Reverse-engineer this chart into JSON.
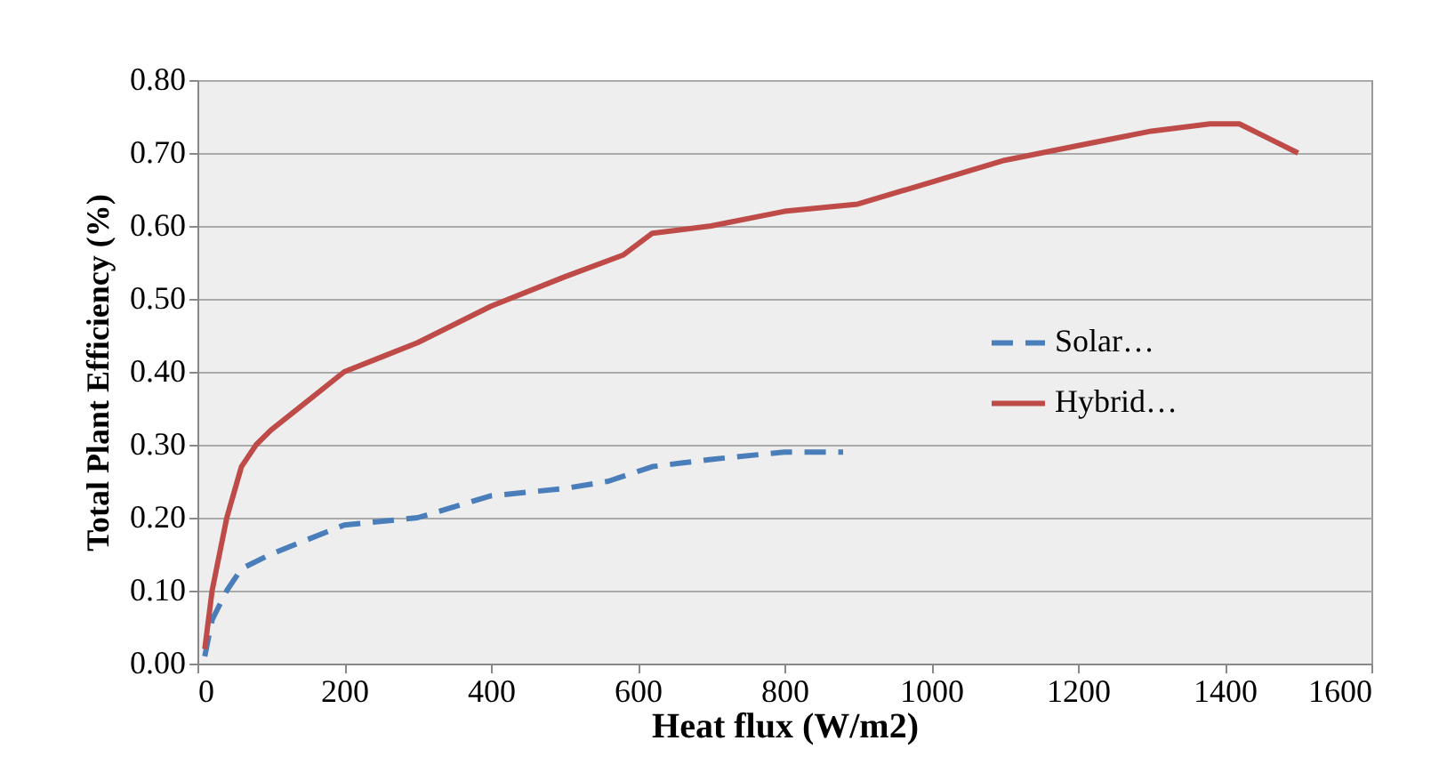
{
  "chart_data": {
    "type": "line",
    "xlabel": "Heat flux (W/m2)",
    "ylabel": "Total Plant Efficiency (%)",
    "xlim": [
      0,
      1600
    ],
    "xticks": [
      0,
      200,
      400,
      600,
      800,
      1000,
      1200,
      1400,
      1600
    ],
    "ylim": [
      0,
      0.8
    ],
    "yticks": [
      {
        "value": 0,
        "label": "0.00"
      },
      {
        "value": 0.1,
        "label": "0.10"
      },
      {
        "value": 0.2,
        "label": "0.20"
      },
      {
        "value": 0.3,
        "label": "0.30"
      },
      {
        "value": 0.4,
        "label": "0.40"
      },
      {
        "value": 0.5,
        "label": "0.50"
      },
      {
        "value": 0.6,
        "label": "0.60"
      },
      {
        "value": 0.7,
        "label": "0.70"
      },
      {
        "value": 0.8,
        "label": "0.80"
      }
    ],
    "grid": "y",
    "legend": "right",
    "series": [
      {
        "name": "Solar…",
        "color": "#4a7ebb",
        "line_style": "dashed",
        "x": [
          10,
          20,
          40,
          60,
          100,
          200,
          300,
          400,
          500,
          560,
          620,
          700,
          800,
          880
        ],
        "values": [
          0.01,
          0.06,
          0.1,
          0.13,
          0.15,
          0.19,
          0.2,
          0.23,
          0.24,
          0.25,
          0.27,
          0.28,
          0.29,
          0.29
        ]
      },
      {
        "name": "Hybrid…",
        "color": "#be4b48",
        "line_style": "solid",
        "x": [
          10,
          20,
          40,
          60,
          80,
          100,
          150,
          200,
          250,
          300,
          400,
          500,
          580,
          620,
          700,
          800,
          900,
          1000,
          1100,
          1200,
          1300,
          1380,
          1420,
          1460,
          1500
        ],
        "values": [
          0.02,
          0.1,
          0.2,
          0.27,
          0.3,
          0.32,
          0.36,
          0.4,
          0.42,
          0.44,
          0.49,
          0.53,
          0.56,
          0.59,
          0.6,
          0.62,
          0.63,
          0.66,
          0.69,
          0.71,
          0.73,
          0.74,
          0.74,
          0.72,
          0.7
        ]
      }
    ]
  }
}
